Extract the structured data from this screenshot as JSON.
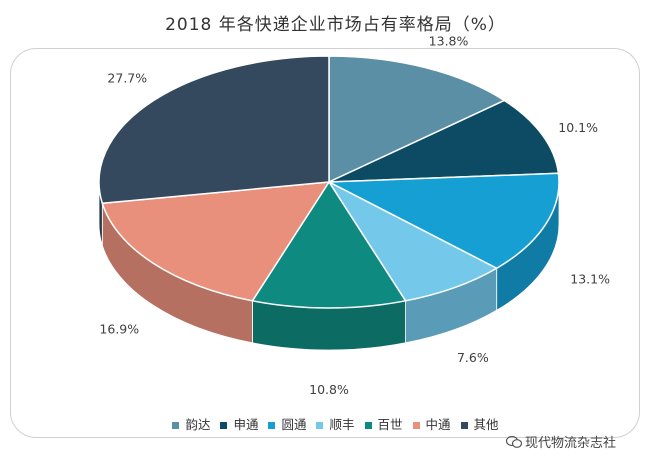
{
  "title": "2018 年各快递企业市场占有率格局（%）",
  "watermark": "现代物流杂志社",
  "colors": {
    "韵达": "#5b8fa6",
    "申通": "#0d4a63",
    "圆通": "#159fd3",
    "顺丰": "#74c8ea",
    "百世": "#0f8a80",
    "中通": "#e9907d",
    "其他": "#34495e"
  },
  "chart_data": {
    "type": "pie",
    "title": "2018 年各快递企业市场占有率格局（%）",
    "categories": [
      "韵达",
      "申通",
      "圆通",
      "顺丰",
      "百世",
      "中通",
      "其他"
    ],
    "values": [
      13.8,
      10.1,
      13.1,
      7.6,
      10.8,
      16.9,
      27.7
    ],
    "data_labels": [
      "13.8%",
      "10.1%",
      "13.1%",
      "7.6%",
      "10.8%",
      "16.9%",
      "27.7%"
    ],
    "style": "3d-pie",
    "legend": "bottom"
  }
}
